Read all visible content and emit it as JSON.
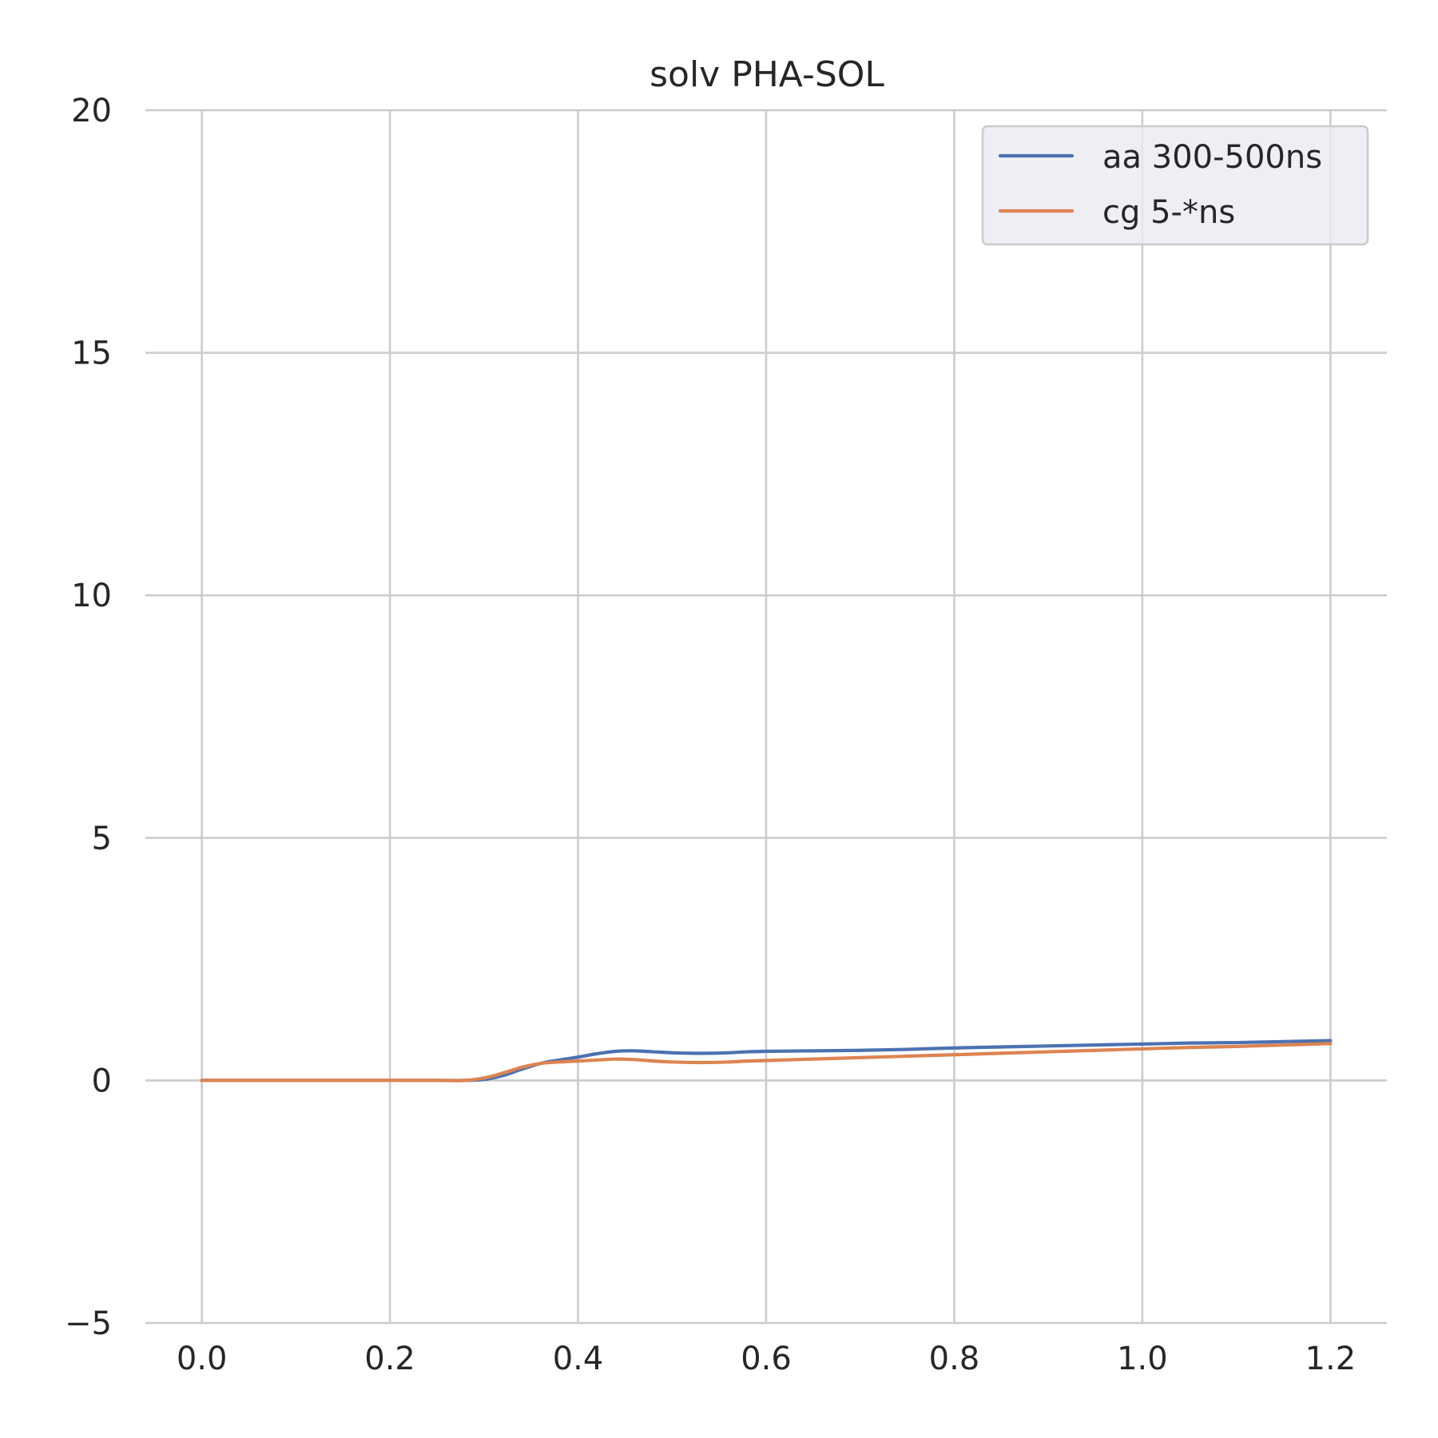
{
  "chart_data": {
    "type": "line",
    "title": "solv PHA-SOL",
    "xlabel": "",
    "ylabel": "",
    "xlim": [
      -0.06,
      1.26
    ],
    "ylim": [
      -5,
      20
    ],
    "x_ticks": [
      0.0,
      0.2,
      0.4,
      0.6,
      0.8,
      1.0,
      1.2
    ],
    "x_tick_labels": [
      "0.0",
      "0.2",
      "0.4",
      "0.6",
      "0.8",
      "1.0",
      "1.2"
    ],
    "y_ticks": [
      -5,
      0,
      5,
      10,
      15,
      20
    ],
    "y_tick_labels": [
      "−5",
      "0",
      "5",
      "10",
      "15",
      "20"
    ],
    "grid": true,
    "legend_position": "top-right",
    "colors": {
      "aa": "#4c72b0",
      "cg": "#dd8452",
      "grid": "#cccccc",
      "legend_bg": "#eaeaf2"
    },
    "series": [
      {
        "name": "aa 300-500ns",
        "color": "#4c72b0",
        "x": [
          0.0,
          0.1,
          0.2,
          0.25,
          0.28,
          0.3,
          0.32,
          0.34,
          0.36,
          0.38,
          0.4,
          0.42,
          0.44,
          0.46,
          0.48,
          0.5,
          0.52,
          0.54,
          0.56,
          0.58,
          0.6,
          0.65,
          0.7,
          0.75,
          0.8,
          0.85,
          0.9,
          0.95,
          1.0,
          1.05,
          1.1,
          1.15,
          1.2
        ],
        "y": [
          0.0,
          0.0,
          0.0,
          0.0,
          0.0,
          0.02,
          0.1,
          0.23,
          0.35,
          0.42,
          0.48,
          0.55,
          0.6,
          0.61,
          0.59,
          0.57,
          0.56,
          0.56,
          0.57,
          0.59,
          0.6,
          0.61,
          0.62,
          0.64,
          0.67,
          0.69,
          0.71,
          0.73,
          0.75,
          0.77,
          0.78,
          0.8,
          0.82
        ]
      },
      {
        "name": "cg 5-*ns",
        "color": "#dd8452",
        "x": [
          0.0,
          0.1,
          0.2,
          0.25,
          0.28,
          0.3,
          0.32,
          0.34,
          0.36,
          0.38,
          0.4,
          0.42,
          0.44,
          0.46,
          0.48,
          0.5,
          0.52,
          0.54,
          0.56,
          0.58,
          0.6,
          0.65,
          0.7,
          0.75,
          0.8,
          0.85,
          0.9,
          0.95,
          1.0,
          1.05,
          1.1,
          1.15,
          1.2
        ],
        "y": [
          0.0,
          0.0,
          0.0,
          0.0,
          0.0,
          0.05,
          0.15,
          0.27,
          0.35,
          0.38,
          0.4,
          0.42,
          0.44,
          0.43,
          0.4,
          0.38,
          0.37,
          0.37,
          0.38,
          0.4,
          0.41,
          0.44,
          0.47,
          0.5,
          0.53,
          0.56,
          0.59,
          0.62,
          0.65,
          0.68,
          0.7,
          0.73,
          0.76
        ]
      }
    ]
  }
}
